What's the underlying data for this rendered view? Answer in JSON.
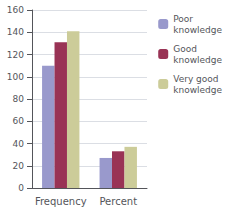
{
  "chart_data": {
    "type": "bar",
    "categories": [
      "Frequency",
      "Percent"
    ],
    "series": [
      {
        "name": "Poor\nknowledge",
        "values": [
          110,
          27
        ],
        "color": "#9999CC"
      },
      {
        "name": "Good\nknowledge",
        "values": [
          131,
          33
        ],
        "color": "#993355"
      },
      {
        "name": "Very good\nknowledge",
        "values": [
          141,
          37
        ],
        "color": "#CCCC99"
      }
    ],
    "ylim": [
      0,
      160
    ],
    "yticks": [
      0,
      20,
      40,
      60,
      80,
      100,
      120,
      140,
      160
    ],
    "grid": true,
    "legend": "right"
  }
}
